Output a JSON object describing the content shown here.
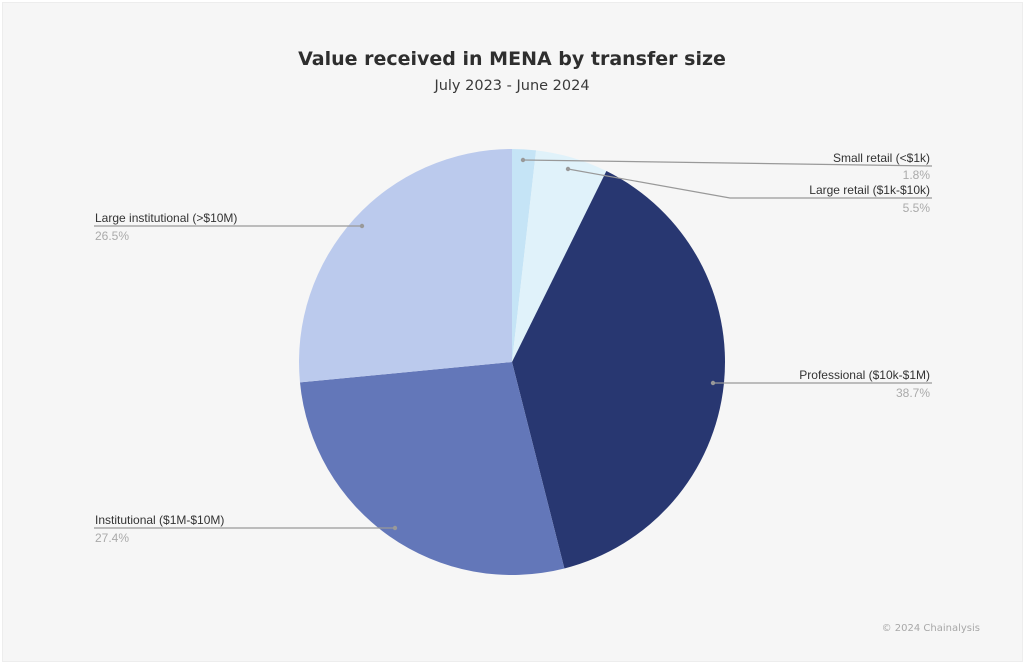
{
  "header": {
    "title": "Value received in MENA by transfer size",
    "subtitle": "July 2023 - June 2024"
  },
  "footer": {
    "copyright": "© 2024 Chainalysis"
  },
  "chart_data": {
    "type": "pie",
    "title": "Value received in MENA by transfer size",
    "subtitle": "July 2023 - June 2024",
    "start_angle": "12 o'clock, clockwise",
    "slices": [
      {
        "label": "Small retail (<$1k)",
        "value": 1.8,
        "display": "1.8%",
        "color": "#c5e4f6"
      },
      {
        "label": "Large retail ($1k-$10k)",
        "value": 5.5,
        "display": "5.5%",
        "color": "#e0f2fa"
      },
      {
        "label": "Professional ($10k-$1M)",
        "value": 38.7,
        "display": "38.7%",
        "color": "#283771"
      },
      {
        "label": "Institutional ($1M-$10M)",
        "value": 27.4,
        "display": "27.4%",
        "color": "#6377b9"
      },
      {
        "label": "Large institutional (>$10M)",
        "value": 26.5,
        "display": "26.5%",
        "color": "#bbcaed"
      }
    ],
    "legend": "leader-line labels outside pie",
    "source": "© 2024 Chainalysis"
  }
}
